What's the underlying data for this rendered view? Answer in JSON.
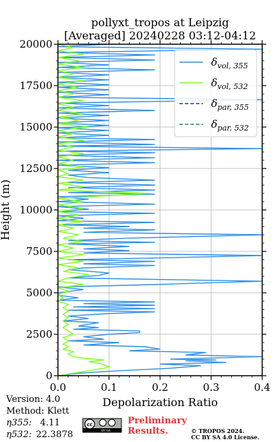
{
  "chart_data": {
    "type": "line",
    "title_line1": "pollyxt_tropos at Leipzig",
    "title_line2": "[Averaged] 20240228 03:12-04:12",
    "xlabel": "Depolarization Ratio",
    "ylabel": "Height (m)",
    "xlim": [
      0,
      0.4
    ],
    "ylim": [
      0,
      20000
    ],
    "x_ticks": [
      "0.0",
      "0.1",
      "0.2",
      "0.3",
      "0.4"
    ],
    "y_ticks": [
      "0",
      "2500",
      "5000",
      "7500",
      "10000",
      "12500",
      "15000",
      "17500",
      "20000"
    ],
    "grid": true,
    "legend_position": "top-right",
    "legend": [
      {
        "symbol": "δ",
        "sub": "vol, 355",
        "color": "#2e8fe6",
        "style": "solid"
      },
      {
        "symbol": "δ",
        "sub": "vol, 532",
        "color": "#7fff1f",
        "style": "solid"
      },
      {
        "symbol": "δ",
        "sub": "par, 355",
        "color": "#1f2ebf",
        "style": "dashed"
      },
      {
        "symbol": "δ",
        "sub": "par, 532",
        "color": "#1f8f4f",
        "style": "dashed"
      }
    ],
    "series": [
      {
        "name": "δvol,355",
        "color": "#2e8fe6",
        "points": [
          [
            0.0,
            0
          ],
          [
            0.04,
            150
          ],
          [
            0.12,
            300
          ],
          [
            0.22,
            450
          ],
          [
            0.28,
            600
          ],
          [
            0.2,
            700
          ],
          [
            0.33,
            800
          ],
          [
            0.25,
            900
          ],
          [
            0.31,
            950
          ],
          [
            0.22,
            1000
          ],
          [
            0.4,
            1150
          ],
          [
            0.25,
            1250
          ],
          [
            0.29,
            1400
          ],
          [
            0.14,
            1500
          ],
          [
            0.2,
            1600
          ],
          [
            0.17,
            1750
          ],
          [
            0.05,
            1850
          ],
          [
            0.12,
            2000
          ],
          [
            0.02,
            2100
          ],
          [
            0.09,
            2200
          ],
          [
            0.05,
            2350
          ],
          [
            0.1,
            2500
          ],
          [
            0.16,
            2600
          ],
          [
            0.16,
            2700
          ],
          [
            0.03,
            2800
          ],
          [
            0.08,
            2900
          ],
          [
            0.04,
            3000
          ],
          [
            0.08,
            3200
          ],
          [
            0.01,
            3300
          ],
          [
            0.06,
            3450
          ],
          [
            0.02,
            3600
          ],
          [
            0.1,
            3750
          ],
          [
            0.19,
            3850
          ],
          [
            0.02,
            3950
          ],
          [
            0.19,
            4050
          ],
          [
            0.03,
            4150
          ],
          [
            0.19,
            4250
          ],
          [
            0.05,
            4350
          ],
          [
            0.19,
            4450
          ],
          [
            0.0,
            4550
          ],
          [
            0.04,
            4700
          ],
          [
            0.0,
            4850
          ],
          [
            0.0,
            5000
          ],
          [
            0.05,
            5200
          ],
          [
            0.0,
            5350
          ],
          [
            0.19,
            5500
          ],
          [
            0.4,
            5700
          ],
          [
            0.02,
            5900
          ],
          [
            0.08,
            6050
          ],
          [
            0.1,
            6200
          ],
          [
            0.02,
            6400
          ],
          [
            0.05,
            6500
          ],
          [
            0.19,
            6650
          ],
          [
            0.05,
            6750
          ],
          [
            0.19,
            6900
          ],
          [
            0.02,
            7000
          ],
          [
            0.19,
            7100
          ],
          [
            0.4,
            7250
          ],
          [
            0.05,
            7400
          ],
          [
            0.14,
            7550
          ],
          [
            0.05,
            7650
          ],
          [
            0.14,
            7800
          ],
          [
            0.02,
            7950
          ],
          [
            0.19,
            8050
          ],
          [
            0.02,
            8150
          ],
          [
            0.14,
            8300
          ],
          [
            0.4,
            8500
          ],
          [
            0.05,
            8650
          ],
          [
            0.19,
            8800
          ],
          [
            0.05,
            8900
          ],
          [
            0.14,
            9000
          ],
          [
            0.01,
            9100
          ],
          [
            0.19,
            9250
          ],
          [
            0.0,
            9350
          ],
          [
            0.05,
            9500
          ],
          [
            0.0,
            9650
          ],
          [
            0.19,
            9800
          ],
          [
            0.0,
            9900
          ],
          [
            0.06,
            10050
          ],
          [
            0.0,
            10200
          ],
          [
            0.19,
            10350
          ],
          [
            0.0,
            10500
          ],
          [
            0.06,
            10650
          ],
          [
            0.0,
            10800
          ],
          [
            0.19,
            10950
          ],
          [
            0.02,
            11050
          ],
          [
            0.19,
            11200
          ],
          [
            0.02,
            11350
          ],
          [
            0.19,
            11500
          ],
          [
            0.02,
            11650
          ],
          [
            0.19,
            11800
          ],
          [
            0.06,
            11950
          ],
          [
            0.02,
            12100
          ],
          [
            0.1,
            12250
          ],
          [
            0.02,
            12400
          ],
          [
            0.1,
            12550
          ],
          [
            0.0,
            12700
          ],
          [
            0.19,
            12850
          ],
          [
            0.0,
            13000
          ],
          [
            0.19,
            13150
          ],
          [
            0.0,
            13300
          ],
          [
            0.19,
            13450
          ],
          [
            0.0,
            13550
          ],
          [
            0.4,
            13700
          ],
          [
            0.0,
            13850
          ],
          [
            0.19,
            13950
          ],
          [
            0.0,
            14100
          ],
          [
            0.19,
            14250
          ],
          [
            0.0,
            14350
          ],
          [
            0.1,
            14500
          ],
          [
            0.0,
            14650
          ],
          [
            0.1,
            14800
          ],
          [
            0.0,
            14950
          ],
          [
            0.1,
            15100
          ],
          [
            0.0,
            15250
          ],
          [
            0.1,
            15400
          ],
          [
            0.0,
            15550
          ],
          [
            0.1,
            15700
          ],
          [
            0.0,
            15850
          ],
          [
            0.19,
            16000
          ],
          [
            0.0,
            16150
          ],
          [
            0.1,
            16300
          ],
          [
            0.0,
            16450
          ],
          [
            0.4,
            16650
          ],
          [
            0.0,
            16800
          ],
          [
            0.1,
            16950
          ],
          [
            0.0,
            17100
          ],
          [
            0.1,
            17250
          ],
          [
            0.0,
            17400
          ],
          [
            0.1,
            17550
          ],
          [
            0.0,
            17700
          ],
          [
            0.1,
            17850
          ],
          [
            0.0,
            18000
          ],
          [
            0.1,
            18150
          ],
          [
            0.0,
            18300
          ],
          [
            0.19,
            18450
          ],
          [
            0.0,
            18600
          ],
          [
            0.1,
            18750
          ],
          [
            0.0,
            18900
          ],
          [
            0.19,
            19050
          ],
          [
            0.0,
            19200
          ],
          [
            0.19,
            19350
          ],
          [
            0.0,
            19500
          ],
          [
            0.4,
            19700
          ],
          [
            0.0,
            19850
          ],
          [
            0.1,
            20000
          ]
        ]
      },
      {
        "name": "δvol,532",
        "color": "#7fff1f",
        "points": [
          [
            0.0,
            0
          ],
          [
            0.03,
            150
          ],
          [
            0.05,
            250
          ],
          [
            0.07,
            350
          ],
          [
            0.09,
            450
          ],
          [
            0.1,
            550
          ],
          [
            0.09,
            650
          ],
          [
            0.08,
            750
          ],
          [
            0.06,
            850
          ],
          [
            0.09,
            950
          ],
          [
            0.05,
            1050
          ],
          [
            0.03,
            1150
          ],
          [
            0.02,
            1300
          ],
          [
            0.03,
            1450
          ],
          [
            0.01,
            1600
          ],
          [
            0.02,
            1750
          ],
          [
            0.01,
            1900
          ],
          [
            0.02,
            2100
          ],
          [
            0.01,
            2300
          ],
          [
            0.03,
            2500
          ],
          [
            0.02,
            2700
          ],
          [
            0.01,
            2900
          ],
          [
            0.02,
            3100
          ],
          [
            0.01,
            3300
          ],
          [
            0.02,
            3500
          ],
          [
            0.01,
            3700
          ],
          [
            0.02,
            3900
          ],
          [
            0.01,
            4100
          ],
          [
            0.02,
            4300
          ],
          [
            0.0,
            4500
          ],
          [
            0.01,
            4700
          ],
          [
            0.0,
            4900
          ],
          [
            0.02,
            5100
          ],
          [
            0.0,
            5300
          ],
          [
            0.05,
            5500
          ],
          [
            0.0,
            5700
          ],
          [
            0.02,
            5900
          ],
          [
            0.06,
            6100
          ],
          [
            0.01,
            6300
          ],
          [
            0.04,
            6500
          ],
          [
            0.0,
            6700
          ],
          [
            0.05,
            6900
          ],
          [
            0.0,
            7100
          ],
          [
            0.05,
            7300
          ],
          [
            0.0,
            7500
          ],
          [
            0.03,
            7700
          ],
          [
            0.0,
            7900
          ],
          [
            0.05,
            8100
          ],
          [
            0.01,
            8300
          ],
          [
            0.04,
            8500
          ],
          [
            0.0,
            8700
          ],
          [
            0.03,
            8900
          ],
          [
            0.0,
            9100
          ],
          [
            0.05,
            9300
          ],
          [
            0.0,
            9500
          ],
          [
            0.04,
            9700
          ],
          [
            0.0,
            9900
          ],
          [
            0.05,
            10100
          ],
          [
            0.0,
            10300
          ],
          [
            0.05,
            10500
          ],
          [
            0.0,
            10700
          ],
          [
            0.18,
            11000
          ],
          [
            0.0,
            11200
          ],
          [
            0.05,
            11400
          ],
          [
            0.0,
            11600
          ],
          [
            0.05,
            11800
          ],
          [
            0.0,
            12000
          ],
          [
            0.02,
            12200
          ],
          [
            0.0,
            12400
          ],
          [
            0.05,
            12600
          ],
          [
            0.0,
            12800
          ],
          [
            0.03,
            13000
          ],
          [
            0.0,
            13200
          ],
          [
            0.05,
            13400
          ],
          [
            0.0,
            13600
          ],
          [
            0.03,
            13800
          ],
          [
            0.0,
            14000
          ],
          [
            0.05,
            14200
          ],
          [
            0.0,
            14400
          ],
          [
            0.03,
            14600
          ],
          [
            0.0,
            14800
          ],
          [
            0.06,
            15000
          ],
          [
            0.0,
            15200
          ],
          [
            0.04,
            15400
          ],
          [
            0.0,
            15600
          ],
          [
            0.05,
            15800
          ],
          [
            0.0,
            16000
          ],
          [
            0.03,
            16200
          ],
          [
            0.0,
            16400
          ],
          [
            0.05,
            16600
          ],
          [
            0.0,
            16800
          ],
          [
            0.03,
            17000
          ],
          [
            0.0,
            17200
          ],
          [
            0.04,
            17400
          ],
          [
            0.0,
            17600
          ],
          [
            0.05,
            17800
          ],
          [
            0.0,
            18000
          ],
          [
            0.03,
            18200
          ],
          [
            0.0,
            18400
          ],
          [
            0.05,
            18600
          ],
          [
            0.0,
            18800
          ],
          [
            0.04,
            19000
          ],
          [
            0.0,
            19200
          ],
          [
            0.05,
            19400
          ],
          [
            0.0,
            19600
          ],
          [
            0.03,
            19800
          ],
          [
            0.0,
            20000
          ]
        ]
      }
    ]
  },
  "footer": {
    "version": "Version: 4.0",
    "method": "Method: Klett",
    "eta355_label": "η355:",
    "eta355_value": "4.11",
    "eta532_label": "η532:",
    "eta532_value": "22.3878",
    "prelim_line1": "Preliminary",
    "prelim_line2": "Results.",
    "license_line1": "© TROPOS 2024.",
    "license_line2": "CC BY SA 4.0 License.",
    "badge_text": "BY SA"
  }
}
